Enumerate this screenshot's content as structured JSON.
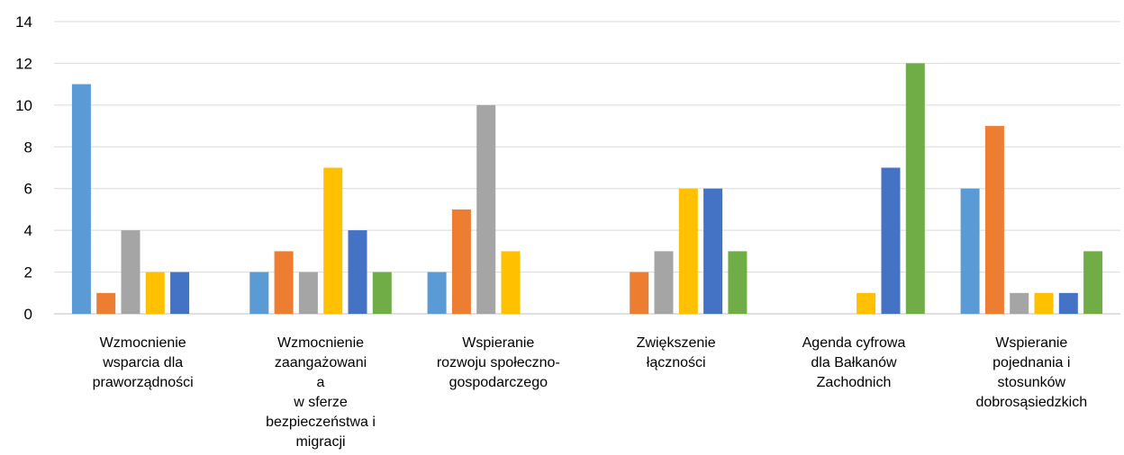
{
  "chart_data": {
    "type": "bar",
    "title": "",
    "xlabel": "",
    "ylabel": "",
    "ylim": [
      0,
      14
    ],
    "yticks": [
      0,
      2,
      4,
      6,
      8,
      10,
      12,
      14
    ],
    "grid": true,
    "legend": "none",
    "categories": [
      "Wzmocnienie wsparcia dla praworządności",
      "Wzmocnienie zaangażowania w sferze bezpieczeństwa i migracji",
      "Wspieranie rozwoju społeczno-gospodarczego",
      "Zwiększenie łączności",
      "Agenda cyfrowa dla Bałkanów Zachodnich",
      "Wspieranie pojednania i stosunków dobrosąsiedzkich"
    ],
    "category_label_lines": [
      [
        "Wzmocnienie",
        "wsparcia dla",
        "praworządności"
      ],
      [
        "Wzmocnienie",
        "zaangażowani",
        "a",
        "w sferze",
        "bezpieczeństwa i",
        "migracji"
      ],
      [
        "Wspieranie",
        "rozwoju społeczno-",
        "gospodarczego"
      ],
      [
        "Zwiększenie",
        "łączności"
      ],
      [
        "Agenda cyfrowa",
        "dla Bałkanów",
        "Zachodnich"
      ],
      [
        "Wspieranie",
        "pojednania i",
        "stosunków",
        "dobrosąsiedzkich"
      ]
    ],
    "series": [
      {
        "color": "#5B9BD5",
        "values": [
          11,
          2,
          2,
          0,
          0,
          6
        ]
      },
      {
        "color": "#ED7D31",
        "values": [
          1,
          3,
          5,
          2,
          0,
          9
        ]
      },
      {
        "color": "#A5A5A5",
        "values": [
          4,
          2,
          10,
          3,
          0,
          1
        ]
      },
      {
        "color": "#FFC000",
        "values": [
          2,
          7,
          3,
          6,
          1,
          1
        ]
      },
      {
        "color": "#4472C4",
        "values": [
          2,
          4,
          0,
          6,
          7,
          1
        ]
      },
      {
        "color": "#70AD47",
        "values": [
          0,
          2,
          0,
          3,
          12,
          3
        ]
      }
    ],
    "colors": {
      "grid": "#D9D9D9",
      "axis": "#BFBFBF",
      "text": "#000000"
    }
  }
}
